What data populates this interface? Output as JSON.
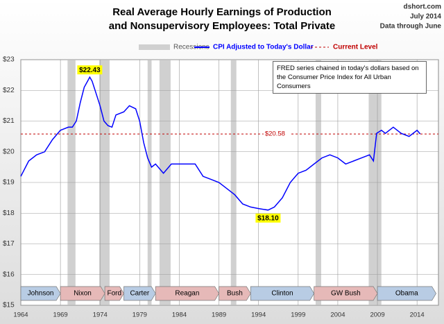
{
  "chart_data": {
    "type": "line",
    "title": [
      "Real Average Hourly Earnings of Production",
      "and Nonsupervisory Employees: Total Private"
    ],
    "source": [
      "dshort.com",
      "July 2014",
      "Data through June"
    ],
    "note": "FRED series chained in today's dollars based on the Consumer Price Index for All Urban Consumers",
    "xlim": [
      1964,
      2016.7
    ],
    "xticks": [
      1964,
      1969,
      1974,
      1979,
      1984,
      1989,
      1994,
      1999,
      2004,
      2009,
      2014
    ],
    "ylim": [
      15,
      23
    ],
    "yticks": [
      {
        "value": 15,
        "label": "$15"
      },
      {
        "value": 16,
        "label": "$16"
      },
      {
        "value": 17,
        "label": "$17"
      },
      {
        "value": 18,
        "label": "$18"
      },
      {
        "value": 19,
        "label": "$19"
      },
      {
        "value": 20,
        "label": "$20"
      },
      {
        "value": 21,
        "label": "$21"
      },
      {
        "value": 22,
        "label": "$22"
      },
      {
        "value": 23,
        "label": "$23"
      }
    ],
    "grid": true,
    "series": [
      {
        "name": "CPI Adjusted to Today's Dollar",
        "color": "#0000ff",
        "x": [
          1964,
          1965,
          1966,
          1967,
          1968,
          1969,
          1970,
          1970.5,
          1971,
          1971.5,
          1972,
          1972.7,
          1973,
          1973.5,
          1974,
          1974.5,
          1975,
          1975.5,
          1976,
          1977,
          1977.7,
          1978.5,
          1979,
          1979.5,
          1980,
          1980.5,
          1981,
          1982,
          1983,
          1984,
          1985,
          1986,
          1987,
          1988,
          1989,
          1990,
          1991,
          1992,
          1993,
          1994,
          1995.2,
          1996,
          1997,
          1998,
          1999,
          2000,
          2001,
          2002,
          2003,
          2004,
          2005,
          2006,
          2007,
          2008,
          2008.5,
          2008.9,
          2009.5,
          2010,
          2011,
          2011.5,
          2012,
          2013,
          2014,
          2014.4
        ],
        "values": [
          19.2,
          19.7,
          19.9,
          20.0,
          20.4,
          20.7,
          20.8,
          20.8,
          21.0,
          21.6,
          22.1,
          22.43,
          22.3,
          21.9,
          21.5,
          21.0,
          20.85,
          20.8,
          21.2,
          21.3,
          21.5,
          21.4,
          21.0,
          20.3,
          19.8,
          19.5,
          19.6,
          19.3,
          19.6,
          19.6,
          19.6,
          19.6,
          19.2,
          19.1,
          19.0,
          18.8,
          18.6,
          18.3,
          18.2,
          18.15,
          18.1,
          18.2,
          18.5,
          19.0,
          19.3,
          19.4,
          19.6,
          19.8,
          19.9,
          19.8,
          19.6,
          19.7,
          19.8,
          19.9,
          19.7,
          20.6,
          20.7,
          20.6,
          20.8,
          20.7,
          20.6,
          20.5,
          20.7,
          20.58
        ]
      }
    ],
    "recessions": {
      "name": "Recessions",
      "color": "#d0d0d0",
      "periods": [
        [
          1969.9,
          1970.9
        ],
        [
          1973.9,
          1975.2
        ],
        [
          1980.0,
          1980.5
        ],
        [
          1981.5,
          1982.9
        ],
        [
          1990.5,
          1991.2
        ],
        [
          2001.2,
          2001.9
        ],
        [
          2007.9,
          2009.5
        ]
      ]
    },
    "current_level": {
      "name": "Current Level",
      "value": 20.58,
      "label": "$20.58",
      "color": "#c00000"
    },
    "annotations": [
      {
        "x": 1972.7,
        "value": 22.43,
        "label": "$22.43"
      },
      {
        "x": 1995.2,
        "value": 18.1,
        "label": "$18.10"
      }
    ],
    "presidents": [
      {
        "name": "Johnson",
        "start": 1964,
        "end": 1969,
        "color": "#b8cce4"
      },
      {
        "name": "Nixon",
        "start": 1969,
        "end": 1974.6,
        "color": "#e6b9b8"
      },
      {
        "name": "Ford",
        "start": 1974.6,
        "end": 1977,
        "color": "#e6b9b8"
      },
      {
        "name": "Carter",
        "start": 1977,
        "end": 1981,
        "color": "#b8cce4"
      },
      {
        "name": "Reagan",
        "start": 1981,
        "end": 1989,
        "color": "#e6b9b8"
      },
      {
        "name": "Bush",
        "start": 1989,
        "end": 1993,
        "color": "#e6b9b8"
      },
      {
        "name": "Clinton",
        "start": 1993,
        "end": 2001,
        "color": "#b8cce4"
      },
      {
        "name": "GW Bush",
        "start": 2001,
        "end": 2009,
        "color": "#e6b9b8"
      },
      {
        "name": "Obama",
        "start": 2009,
        "end": 2016.4,
        "color": "#b8cce4"
      }
    ]
  }
}
